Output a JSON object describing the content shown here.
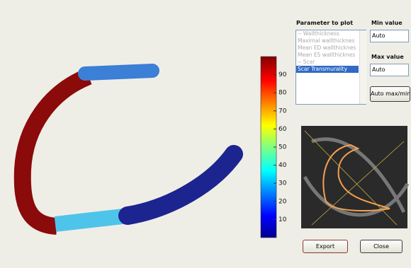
{
  "panel": {
    "parameter_label": "Parameter to plot",
    "parameters": [
      "-- Wallthickness",
      "Maximal wallthicknes",
      "Mean ED wallthicknes",
      "Mean ES wallthicknes",
      "-- Scar",
      "Scar Transmurality"
    ],
    "selected": "Scar Transmurality",
    "min_label": "Min value",
    "min_value": "Auto",
    "max_label": "Max value",
    "max_value": "Auto",
    "auto_button": "Auto max/min",
    "export_button": "Export",
    "close_button": "Close"
  },
  "colorbar": {
    "lim": [
      0,
      100
    ],
    "ticks": [
      10,
      20,
      30,
      40,
      50,
      60,
      70,
      80,
      90
    ]
  }
}
